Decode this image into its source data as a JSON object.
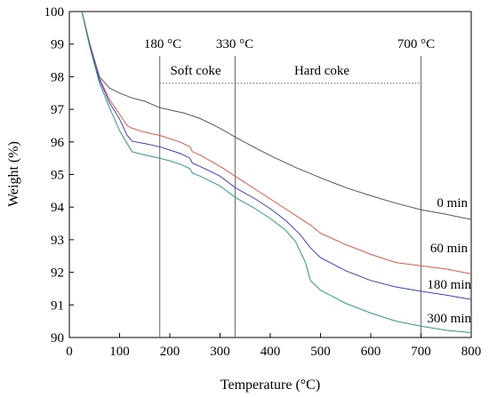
{
  "chart_data": {
    "type": "line",
    "title": "",
    "xlabel": "Temperature (°C)",
    "ylabel": "Weight (%)",
    "xlim": [
      0,
      800
    ],
    "ylim": [
      90,
      100
    ],
    "xticks": [
      0,
      100,
      200,
      300,
      400,
      500,
      600,
      700,
      800
    ],
    "yticks": [
      90,
      91,
      92,
      93,
      94,
      95,
      96,
      97,
      98,
      99,
      100
    ],
    "grid": false,
    "legend": "none",
    "series": [
      {
        "name": "0 min",
        "color": "#555555",
        "points": [
          [
            25,
            100
          ],
          [
            40,
            99.05
          ],
          [
            60,
            98
          ],
          [
            80,
            97.65
          ],
          [
            100,
            97.5
          ],
          [
            125,
            97.35
          ],
          [
            150,
            97.25
          ],
          [
            180,
            97.05
          ],
          [
            200,
            96.98
          ],
          [
            230,
            96.88
          ],
          [
            260,
            96.72
          ],
          [
            300,
            96.42
          ],
          [
            330,
            96.15
          ],
          [
            370,
            95.82
          ],
          [
            400,
            95.58
          ],
          [
            450,
            95.22
          ],
          [
            500,
            94.9
          ],
          [
            550,
            94.6
          ],
          [
            600,
            94.35
          ],
          [
            650,
            94.12
          ],
          [
            700,
            93.92
          ],
          [
            750,
            93.78
          ],
          [
            800,
            93.62
          ]
        ]
      },
      {
        "name": "60 min",
        "color": "#e8553f",
        "points": [
          [
            25,
            100
          ],
          [
            40,
            99.05
          ],
          [
            60,
            97.95
          ],
          [
            80,
            97.3
          ],
          [
            100,
            96.85
          ],
          [
            115,
            96.5
          ],
          [
            125,
            96.42
          ],
          [
            150,
            96.3
          ],
          [
            180,
            96.2
          ],
          [
            200,
            96.1
          ],
          [
            220,
            96.0
          ],
          [
            240,
            95.85
          ],
          [
            245,
            95.7
          ],
          [
            260,
            95.6
          ],
          [
            300,
            95.25
          ],
          [
            330,
            94.95
          ],
          [
            370,
            94.55
          ],
          [
            400,
            94.25
          ],
          [
            450,
            93.75
          ],
          [
            480,
            93.45
          ],
          [
            500,
            93.2
          ],
          [
            550,
            92.85
          ],
          [
            600,
            92.55
          ],
          [
            650,
            92.3
          ],
          [
            700,
            92.2
          ],
          [
            750,
            92.1
          ],
          [
            800,
            91.95
          ]
        ]
      },
      {
        "name": "180 min",
        "color": "#3b3bd8",
        "points": [
          [
            25,
            100
          ],
          [
            40,
            99.0
          ],
          [
            60,
            97.9
          ],
          [
            80,
            97.2
          ],
          [
            100,
            96.7
          ],
          [
            115,
            96.2
          ],
          [
            125,
            96.02
          ],
          [
            150,
            95.95
          ],
          [
            180,
            95.85
          ],
          [
            200,
            95.75
          ],
          [
            220,
            95.65
          ],
          [
            240,
            95.5
          ],
          [
            245,
            95.35
          ],
          [
            260,
            95.25
          ],
          [
            300,
            94.95
          ],
          [
            330,
            94.6
          ],
          [
            370,
            94.25
          ],
          [
            400,
            93.95
          ],
          [
            430,
            93.6
          ],
          [
            460,
            93.15
          ],
          [
            480,
            92.75
          ],
          [
            500,
            92.45
          ],
          [
            550,
            92.05
          ],
          [
            600,
            91.75
          ],
          [
            650,
            91.55
          ],
          [
            700,
            91.42
          ],
          [
            750,
            91.3
          ],
          [
            800,
            91.17
          ]
        ]
      },
      {
        "name": "300 min",
        "color": "#2a9a84",
        "points": [
          [
            25,
            100
          ],
          [
            40,
            98.95
          ],
          [
            60,
            97.8
          ],
          [
            80,
            97.05
          ],
          [
            100,
            96.35
          ],
          [
            115,
            95.95
          ],
          [
            125,
            95.7
          ],
          [
            150,
            95.6
          ],
          [
            180,
            95.5
          ],
          [
            200,
            95.42
          ],
          [
            220,
            95.32
          ],
          [
            240,
            95.18
          ],
          [
            245,
            95.05
          ],
          [
            260,
            94.95
          ],
          [
            300,
            94.65
          ],
          [
            330,
            94.3
          ],
          [
            370,
            93.95
          ],
          [
            400,
            93.65
          ],
          [
            430,
            93.3
          ],
          [
            450,
            92.95
          ],
          [
            470,
            92.3
          ],
          [
            480,
            91.75
          ],
          [
            500,
            91.45
          ],
          [
            550,
            91.05
          ],
          [
            600,
            90.75
          ],
          [
            650,
            90.5
          ],
          [
            700,
            90.35
          ],
          [
            750,
            90.22
          ],
          [
            800,
            90.15
          ]
        ]
      }
    ],
    "vlines": [
      180,
      330,
      700
    ],
    "annotations": {
      "temp_labels": [
        "180 °C",
        "330 °C",
        "700 °C"
      ],
      "soft_coke": "Soft coke",
      "hard_coke": "Hard coke",
      "curve_labels": [
        "0 min",
        "60 min",
        "180 min",
        "300 min"
      ]
    },
    "dotted_line": {
      "x_from": 180,
      "x_to": 700,
      "y": 97.8
    }
  }
}
